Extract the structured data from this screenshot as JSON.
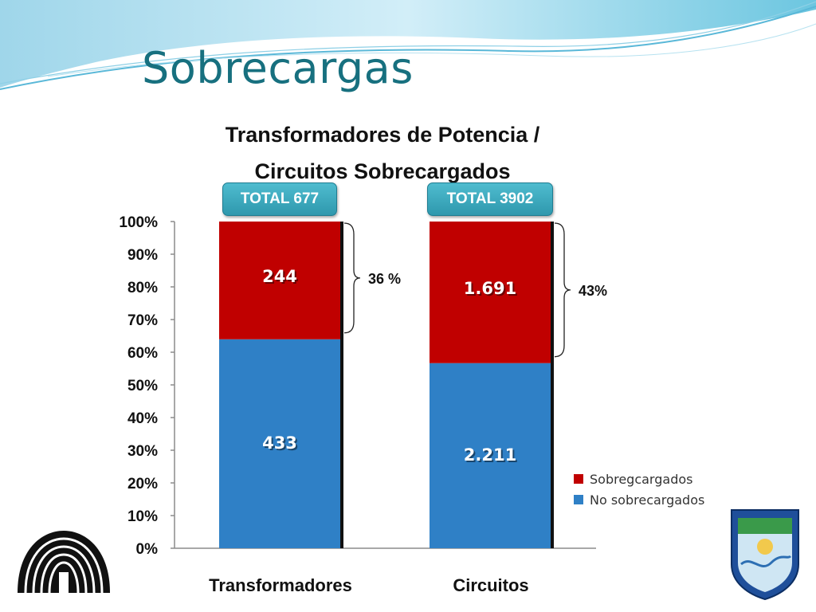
{
  "slide": {
    "title": "Sobrecargas"
  },
  "chart_data": {
    "type": "bar",
    "stacked": "percent",
    "title": "Transformadores de Potencia / Circuitos Sobrecargados",
    "title_lines": [
      "Transformadores de Potencia /",
      "Circuitos Sobrecargados"
    ],
    "categories": [
      "Transformadores",
      "Circuitos"
    ],
    "totals": [
      "TOTAL 677",
      "TOTAL 3902"
    ],
    "series": [
      {
        "name": "No sobrecargados",
        "color": "#2f80c6",
        "values": [
          433,
          2211
        ],
        "labels": [
          "433",
          "2.211"
        ]
      },
      {
        "name": "Sobregcargados",
        "color": "#c00000",
        "values": [
          244,
          1691
        ],
        "labels": [
          "244",
          "1.691"
        ]
      }
    ],
    "legend_order": [
      1,
      0
    ],
    "legend_position": "right",
    "annotations": [
      "36 %",
      "43%"
    ],
    "ylim": [
      0,
      100
    ],
    "y_ticks": [
      "0%",
      "10%",
      "20%",
      "30%",
      "40%",
      "50%",
      "60%",
      "70%",
      "80%",
      "90%",
      "100%"
    ],
    "grid": false
  }
}
